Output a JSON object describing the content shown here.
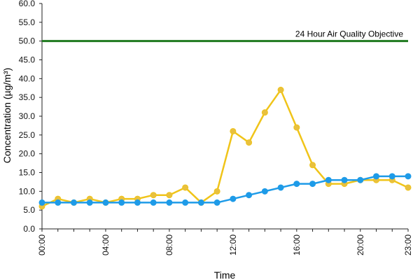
{
  "chart_data": {
    "type": "line",
    "title": "",
    "xlabel": "Time",
    "ylabel": "Concentration (µg/m³)",
    "ylim": [
      0,
      60
    ],
    "y_ticks": [
      "0.0",
      "5.0",
      "10.0",
      "15.0",
      "20.0",
      "25.0",
      "30.0",
      "35.0",
      "40.0",
      "45.0",
      "50.0",
      "55.0",
      "60.0"
    ],
    "x_tick_labels": [
      "00:00",
      "04:00",
      "08:00",
      "12:00",
      "16:00",
      "20:00",
      "23:00"
    ],
    "x_tick_hours": [
      0,
      4,
      8,
      12,
      16,
      20,
      23
    ],
    "x": [
      0,
      1,
      2,
      3,
      4,
      5,
      6,
      7,
      8,
      9,
      10,
      11,
      12,
      13,
      14,
      15,
      16,
      17,
      18,
      19,
      20,
      21,
      22,
      23
    ],
    "grid": false,
    "series": [
      {
        "color": "#f0c419",
        "marker_fill": "#e8c040",
        "values": [
          6,
          8,
          7,
          8,
          7,
          8,
          8,
          9,
          9,
          11,
          7,
          10,
          26,
          23,
          31,
          37,
          27,
          17,
          12,
          12,
          13,
          13,
          13,
          11
        ]
      },
      {
        "color": "#1e9be8",
        "marker_fill": "#1e9be8",
        "values": [
          7,
          7,
          7,
          7,
          7,
          7,
          7,
          7,
          7,
          7,
          7,
          7,
          8,
          9,
          10,
          11,
          12,
          12,
          13,
          13,
          13,
          14,
          14,
          14
        ]
      }
    ],
    "reference_line": {
      "value": 50,
      "label": "24 Hour Air Quality Objective",
      "color": "#1f7a1f"
    }
  }
}
